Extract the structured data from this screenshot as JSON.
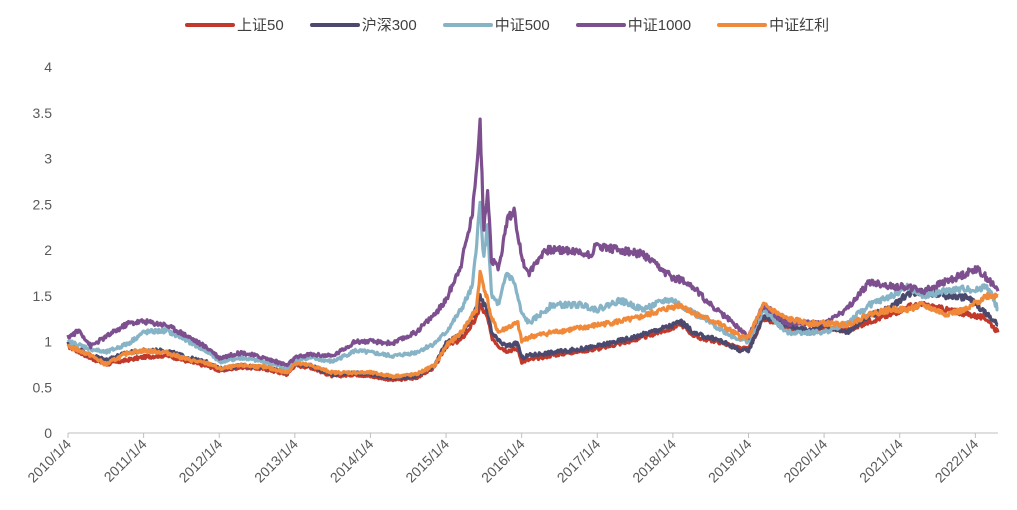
{
  "chart_data": {
    "type": "line",
    "title": "",
    "xlabel": "",
    "ylabel": "",
    "ylim": [
      0,
      4
    ],
    "y_ticks": [
      "0",
      "0.5",
      "1",
      "1.5",
      "2",
      "2.5",
      "3",
      "3.5",
      "4"
    ],
    "x_ticks": [
      "2010/1/4",
      "2011/1/4",
      "2012/1/4",
      "2013/1/4",
      "2014/1/4",
      "2015/1/4",
      "2016/1/4",
      "2017/1/4",
      "2018/1/4",
      "2019/1/4",
      "2020/1/4",
      "2021/1/4",
      "2022/1/4"
    ],
    "x_range": [
      2010.0,
      2022.3
    ],
    "legend_position": "top",
    "series": [
      {
        "name": "上证50",
        "color": "#c0392b",
        "x": [
          2010.0,
          2010.3,
          2010.5,
          2010.8,
          2011.0,
          2011.3,
          2011.6,
          2011.9,
          2012.0,
          2012.3,
          2012.6,
          2012.9,
          2013.0,
          2013.2,
          2013.5,
          2013.8,
          2014.0,
          2014.3,
          2014.6,
          2014.85,
          2015.0,
          2015.2,
          2015.4,
          2015.45,
          2015.55,
          2015.6,
          2015.7,
          2015.8,
          2015.95,
          2016.0,
          2016.1,
          2016.4,
          2016.8,
          2017.0,
          2017.5,
          2018.0,
          2018.1,
          2018.3,
          2018.6,
          2018.9,
          2019.0,
          2019.2,
          2019.5,
          2019.8,
          2020.0,
          2020.3,
          2020.6,
          2020.9,
          2021.1,
          2021.3,
          2021.6,
          2021.9,
          2022.0,
          2022.15,
          2022.3
        ],
        "values": [
          0.95,
          0.82,
          0.75,
          0.8,
          0.83,
          0.85,
          0.78,
          0.72,
          0.68,
          0.72,
          0.7,
          0.64,
          0.74,
          0.72,
          0.62,
          0.64,
          0.62,
          0.58,
          0.6,
          0.72,
          0.95,
          1.02,
          1.25,
          1.4,
          1.25,
          1.05,
          0.95,
          0.9,
          0.92,
          0.78,
          0.8,
          0.85,
          0.9,
          0.92,
          1.02,
          1.15,
          1.2,
          1.05,
          1.0,
          0.92,
          0.92,
          1.25,
          1.15,
          1.1,
          1.15,
          1.12,
          1.22,
          1.3,
          1.38,
          1.4,
          1.35,
          1.3,
          1.28,
          1.25,
          1.1
        ]
      },
      {
        "name": "沪深300",
        "color": "#4b4a6e",
        "x": [
          2010.0,
          2010.3,
          2010.5,
          2010.8,
          2011.0,
          2011.3,
          2011.6,
          2011.9,
          2012.0,
          2012.3,
          2012.6,
          2012.9,
          2013.0,
          2013.2,
          2013.5,
          2013.8,
          2014.0,
          2014.3,
          2014.6,
          2014.85,
          2015.0,
          2015.2,
          2015.4,
          2015.45,
          2015.55,
          2015.6,
          2015.7,
          2015.8,
          2015.95,
          2016.0,
          2016.1,
          2016.4,
          2016.8,
          2017.0,
          2017.5,
          2018.0,
          2018.1,
          2018.3,
          2018.6,
          2018.9,
          2019.0,
          2019.2,
          2019.5,
          2019.8,
          2020.0,
          2020.3,
          2020.6,
          2020.9,
          2021.1,
          2021.3,
          2021.6,
          2021.9,
          2022.0,
          2022.15,
          2022.3
        ],
        "values": [
          0.98,
          0.85,
          0.8,
          0.88,
          0.9,
          0.9,
          0.82,
          0.76,
          0.7,
          0.74,
          0.72,
          0.66,
          0.76,
          0.74,
          0.64,
          0.66,
          0.64,
          0.6,
          0.62,
          0.74,
          0.98,
          1.08,
          1.35,
          1.5,
          1.32,
          1.1,
          1.0,
          0.95,
          0.98,
          0.82,
          0.85,
          0.88,
          0.92,
          0.95,
          1.05,
          1.18,
          1.22,
          1.08,
          1.02,
          0.9,
          0.9,
          1.28,
          1.18,
          1.12,
          1.18,
          1.1,
          1.28,
          1.38,
          1.52,
          1.55,
          1.5,
          1.48,
          1.42,
          1.3,
          1.18
        ]
      },
      {
        "name": "中证500",
        "color": "#87b3c7",
        "x": [
          2010.0,
          2010.3,
          2010.5,
          2010.8,
          2011.0,
          2011.3,
          2011.6,
          2011.9,
          2012.0,
          2012.3,
          2012.6,
          2012.9,
          2013.0,
          2013.2,
          2013.5,
          2013.8,
          2014.0,
          2014.3,
          2014.6,
          2014.85,
          2015.0,
          2015.2,
          2015.35,
          2015.45,
          2015.5,
          2015.55,
          2015.6,
          2015.7,
          2015.8,
          2015.9,
          2016.0,
          2016.1,
          2016.4,
          2016.8,
          2017.0,
          2017.3,
          2017.6,
          2017.9,
          2018.0,
          2018.2,
          2018.5,
          2018.8,
          2019.0,
          2019.2,
          2019.5,
          2019.8,
          2020.0,
          2020.3,
          2020.6,
          2020.9,
          2021.1,
          2021.3,
          2021.6,
          2021.9,
          2022.0,
          2022.15,
          2022.3
        ],
        "values": [
          1.0,
          0.92,
          0.88,
          0.98,
          1.1,
          1.12,
          1.0,
          0.86,
          0.78,
          0.82,
          0.78,
          0.7,
          0.8,
          0.82,
          0.78,
          0.9,
          0.88,
          0.84,
          0.88,
          0.98,
          1.1,
          1.35,
          1.6,
          2.5,
          1.9,
          2.3,
          1.5,
          1.4,
          1.75,
          1.65,
          1.3,
          1.2,
          1.4,
          1.4,
          1.35,
          1.45,
          1.35,
          1.45,
          1.45,
          1.35,
          1.2,
          1.05,
          1.0,
          1.35,
          1.1,
          1.1,
          1.1,
          1.2,
          1.4,
          1.5,
          1.6,
          1.5,
          1.55,
          1.58,
          1.55,
          1.62,
          1.35
        ]
      },
      {
        "name": "中证1000",
        "color": "#7d4f8f",
        "x": [
          2010.0,
          2010.15,
          2010.3,
          2010.5,
          2010.8,
          2011.0,
          2011.3,
          2011.6,
          2011.9,
          2012.0,
          2012.3,
          2012.6,
          2012.9,
          2013.0,
          2013.2,
          2013.5,
          2013.8,
          2014.0,
          2014.3,
          2014.6,
          2014.85,
          2015.0,
          2015.2,
          2015.35,
          2015.45,
          2015.5,
          2015.55,
          2015.6,
          2015.7,
          2015.8,
          2015.9,
          2016.0,
          2016.1,
          2016.3,
          2016.6,
          2016.9,
          2017.0,
          2017.3,
          2017.6,
          2017.9,
          2018.0,
          2018.2,
          2018.5,
          2018.8,
          2019.0,
          2019.2,
          2019.5,
          2019.8,
          2020.0,
          2020.3,
          2020.6,
          2020.9,
          2021.1,
          2021.3,
          2021.6,
          2021.9,
          2022.0,
          2022.15,
          2022.3
        ],
        "values": [
          1.05,
          1.12,
          0.95,
          1.05,
          1.2,
          1.22,
          1.18,
          1.05,
          0.9,
          0.82,
          0.88,
          0.82,
          0.74,
          0.82,
          0.86,
          0.84,
          1.0,
          1.0,
          0.98,
          1.1,
          1.3,
          1.45,
          1.85,
          2.4,
          3.4,
          2.2,
          2.7,
          1.9,
          1.8,
          2.3,
          2.45,
          1.9,
          1.75,
          2.0,
          2.0,
          1.95,
          2.05,
          2.0,
          1.95,
          1.75,
          1.7,
          1.65,
          1.4,
          1.2,
          1.05,
          1.4,
          1.2,
          1.2,
          1.2,
          1.35,
          1.65,
          1.6,
          1.6,
          1.55,
          1.65,
          1.75,
          1.8,
          1.7,
          1.55
        ]
      },
      {
        "name": "中证红利",
        "color": "#f08a3a",
        "x": [
          2010.0,
          2010.3,
          2010.5,
          2010.8,
          2011.0,
          2011.3,
          2011.6,
          2011.9,
          2012.0,
          2012.3,
          2012.6,
          2012.9,
          2013.0,
          2013.2,
          2013.5,
          2013.8,
          2014.0,
          2014.3,
          2014.6,
          2014.85,
          2015.0,
          2015.2,
          2015.4,
          2015.45,
          2015.55,
          2015.6,
          2015.7,
          2015.8,
          2015.95,
          2016.0,
          2016.1,
          2016.4,
          2016.8,
          2017.0,
          2017.5,
          2018.0,
          2018.1,
          2018.3,
          2018.6,
          2018.9,
          2019.0,
          2019.2,
          2019.5,
          2019.8,
          2020.0,
          2020.3,
          2020.6,
          2020.9,
          2021.1,
          2021.3,
          2021.6,
          2021.9,
          2022.0,
          2022.15,
          2022.3
        ],
        "values": [
          0.95,
          0.85,
          0.75,
          0.88,
          0.9,
          0.88,
          0.8,
          0.75,
          0.7,
          0.74,
          0.72,
          0.66,
          0.76,
          0.74,
          0.66,
          0.66,
          0.66,
          0.62,
          0.64,
          0.74,
          0.95,
          1.1,
          1.35,
          1.75,
          1.45,
          1.25,
          1.1,
          1.15,
          1.2,
          1.0,
          1.05,
          1.1,
          1.15,
          1.18,
          1.25,
          1.38,
          1.4,
          1.3,
          1.2,
          1.05,
          1.05,
          1.4,
          1.25,
          1.2,
          1.2,
          1.18,
          1.3,
          1.35,
          1.35,
          1.4,
          1.3,
          1.35,
          1.42,
          1.5,
          1.5
        ]
      }
    ]
  }
}
